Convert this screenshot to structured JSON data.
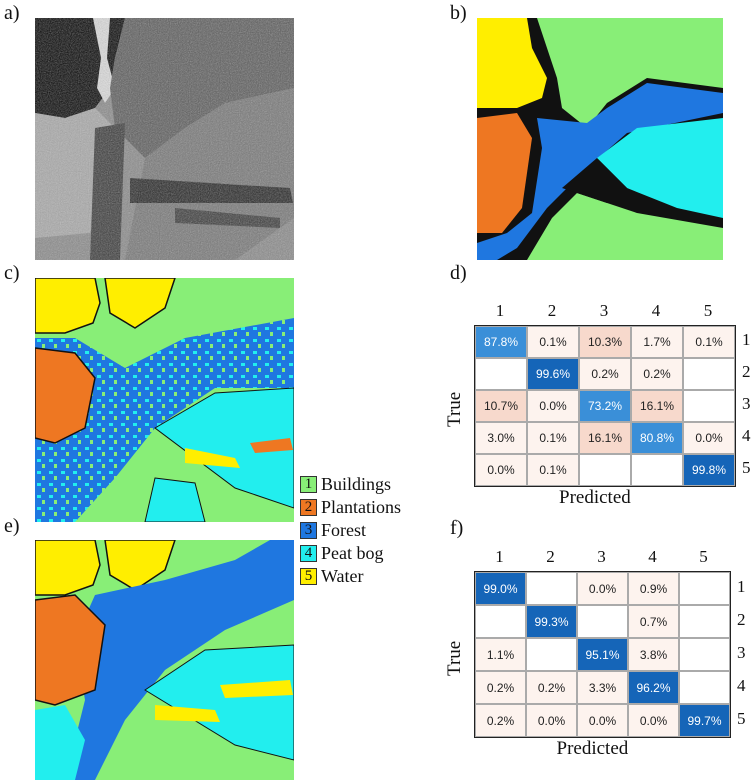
{
  "panels": {
    "a": "a)",
    "b": "b)",
    "c": "c)",
    "d": "d)",
    "e": "e)",
    "f": "f)"
  },
  "colors": {
    "buildings": "#88ee77",
    "plantations": "#ee7722",
    "forest": "#1f77e0",
    "peatbog": "#22eeee",
    "water": "#ffee00",
    "border": "#111111",
    "diag": "#1565b8",
    "light_blue": "#3a8fd8",
    "pink": "#f7d9cc",
    "faint": "#fdf3ee"
  },
  "legend": [
    {
      "num": "1",
      "label": "Buildings",
      "color": "#88ee77"
    },
    {
      "num": "2",
      "label": "Plantations",
      "color": "#ee7722"
    },
    {
      "num": "3",
      "label": "Forest",
      "color": "#1f77e0"
    },
    {
      "num": "4",
      "label": "Peat bog",
      "color": "#22eeee"
    },
    {
      "num": "5",
      "label": "Water",
      "color": "#ffee00"
    }
  ],
  "confusion_d": {
    "col_labels": [
      "1",
      "2",
      "3",
      "4",
      "5"
    ],
    "row_labels": [
      "1",
      "2",
      "3",
      "4",
      "5"
    ],
    "ylabel": "True",
    "xlabel": "Predicted",
    "cells": [
      [
        "87.8%",
        "0.1%",
        "10.3%",
        "1.7%",
        "0.1%"
      ],
      [
        "",
        "99.6%",
        "0.2%",
        "0.2%",
        ""
      ],
      [
        "10.7%",
        "0.0%",
        "73.2%",
        "16.1%",
        ""
      ],
      [
        "3.0%",
        "0.1%",
        "16.1%",
        "80.8%",
        "0.0%"
      ],
      [
        "0.0%",
        "0.1%",
        "",
        "",
        "99.8%"
      ]
    ]
  },
  "confusion_f": {
    "col_labels": [
      "1",
      "2",
      "3",
      "4",
      "5"
    ],
    "row_labels": [
      "1",
      "2",
      "3",
      "4",
      "5"
    ],
    "ylabel": "True",
    "xlabel": "Predicted",
    "cells": [
      [
        "99.0%",
        "",
        "0.0%",
        "0.9%",
        ""
      ],
      [
        "",
        "99.3%",
        "",
        "0.7%",
        ""
      ],
      [
        "1.1%",
        "",
        "95.1%",
        "3.8%",
        ""
      ],
      [
        "0.2%",
        "0.2%",
        "3.3%",
        "96.2%",
        ""
      ],
      [
        "0.2%",
        "0.0%",
        "0.0%",
        "0.0%",
        "99.7%"
      ]
    ]
  }
}
